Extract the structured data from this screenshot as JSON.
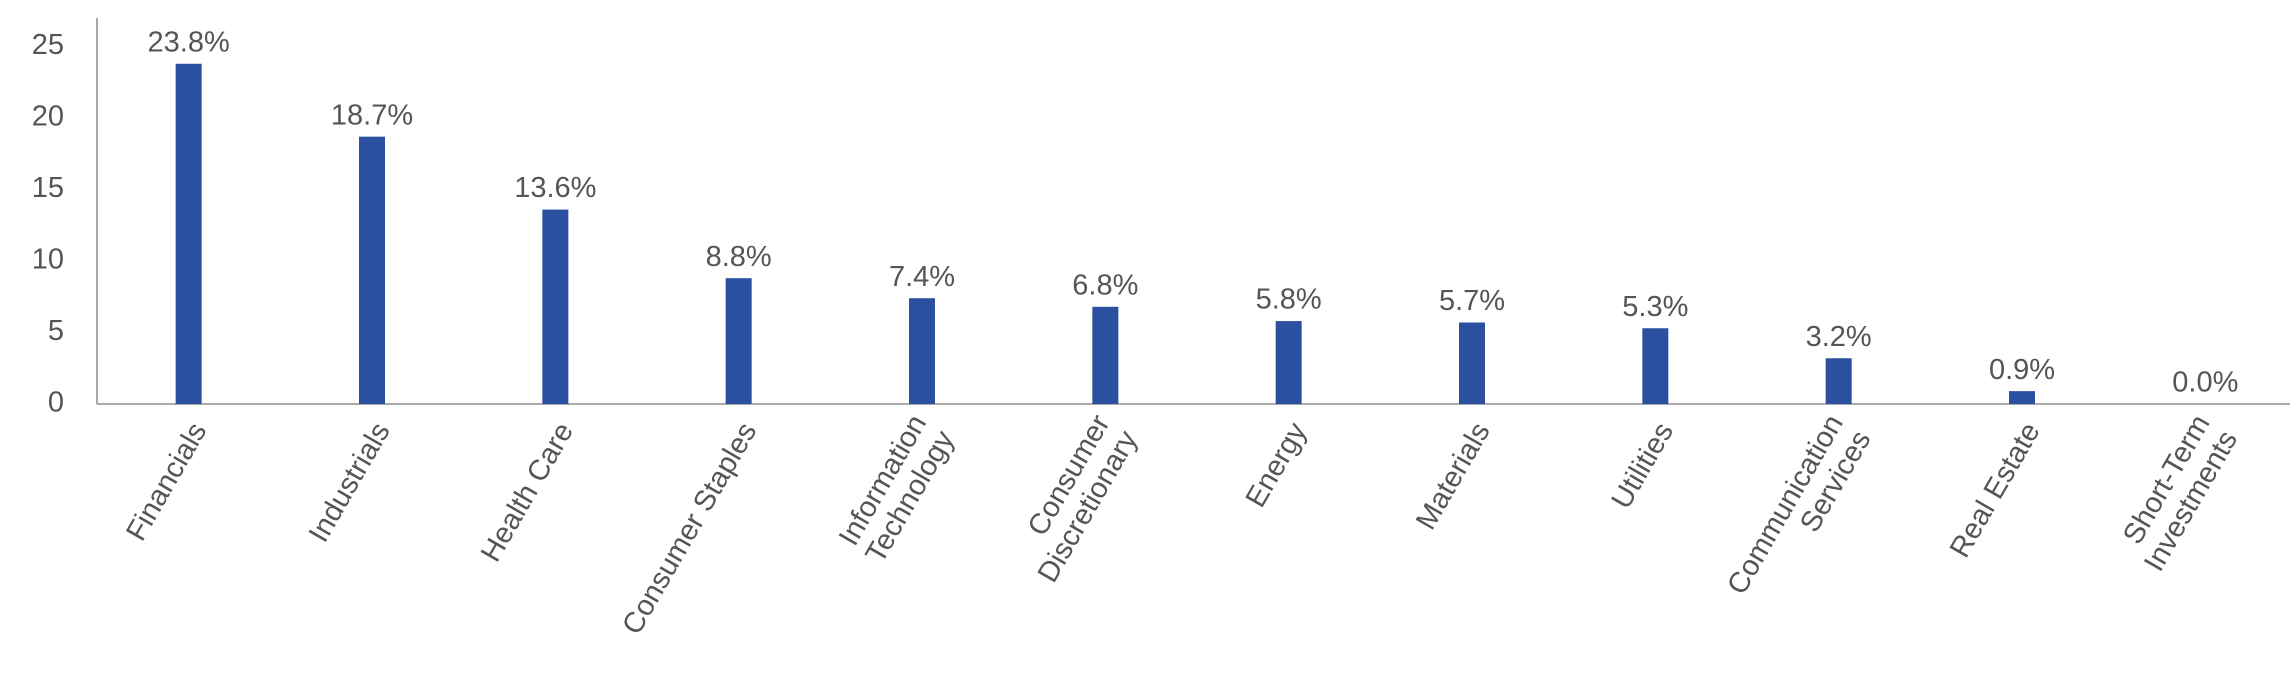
{
  "chart_data": {
    "type": "bar",
    "categories": [
      "Financials",
      "Industrials",
      "Health Care",
      "Consumer Staples",
      "Information\nTechnology",
      "Consumer\nDiscretionary",
      "Energy",
      "Materials",
      "Utilities",
      "Communication\nServices",
      "Real Estate",
      "Short-Term\nInvestments"
    ],
    "values": [
      23.8,
      18.7,
      13.6,
      8.8,
      7.4,
      6.8,
      5.8,
      5.7,
      5.3,
      3.2,
      0.9,
      0.0
    ],
    "value_labels": [
      "23.8%",
      "18.7%",
      "13.6%",
      "8.8%",
      "7.4%",
      "6.8%",
      "5.8%",
      "5.7%",
      "5.3%",
      "3.2%",
      "0.9%",
      "0.0%"
    ],
    "color": "#2b50a0",
    "ylim": [
      0,
      27
    ],
    "yticks": [
      0,
      5,
      10,
      15,
      20,
      25
    ],
    "grid": false
  }
}
